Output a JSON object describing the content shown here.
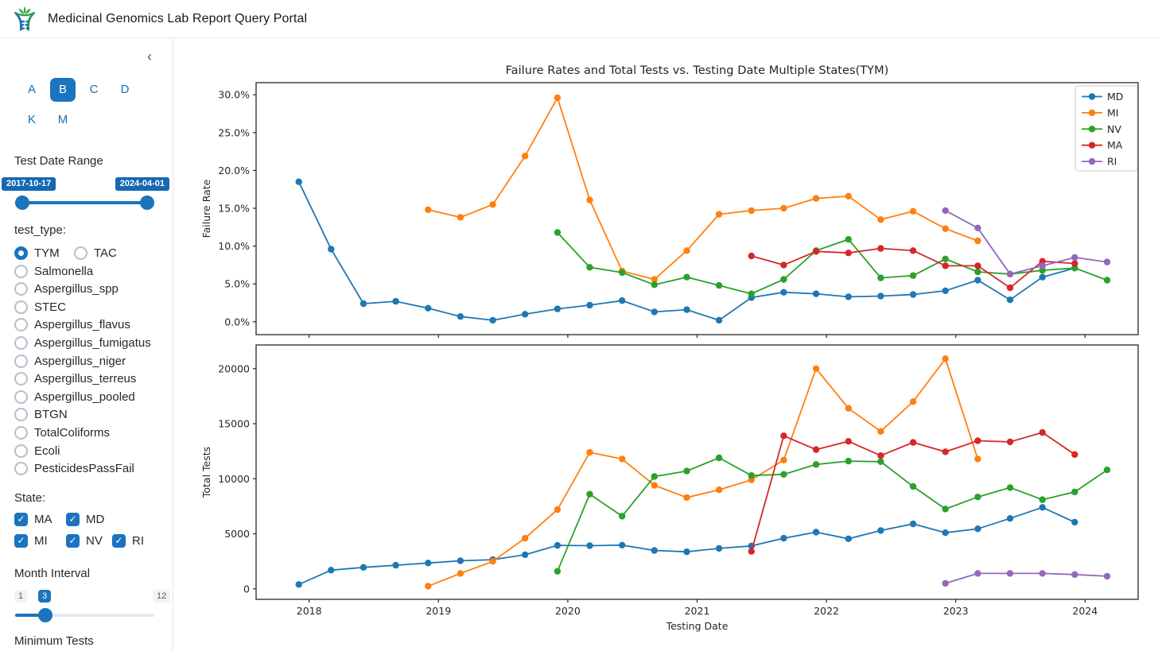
{
  "header": {
    "title": "Medicinal Genomics Lab Report Query Portal",
    "logo": "dna-plant-logo"
  },
  "sidebar": {
    "collapse_icon": "‹",
    "tabs": {
      "row1": [
        "A",
        "B",
        "C",
        "D"
      ],
      "row2": [
        "K",
        "M"
      ],
      "selected": "B"
    },
    "date_range": {
      "label": "Test Date Range",
      "start": "2017-10-17",
      "end": "2024-04-01"
    },
    "test_type": {
      "label": "test_type:",
      "selected": "TYM",
      "options": [
        "TYM",
        "TAC",
        "Salmonella",
        "Aspergillus_spp",
        "STEC",
        "Aspergillus_flavus",
        "Aspergillus_fumigatus",
        "Aspergillus_niger",
        "Aspergillus_terreus",
        "Aspergillus_pooled",
        "BTGN",
        "TotalColiforms",
        "Ecoli",
        "PesticidesPassFail"
      ]
    },
    "state": {
      "label": "State:",
      "options": [
        "MA",
        "MD",
        "MI",
        "NV",
        "RI"
      ],
      "checked": [
        "MA",
        "MD",
        "MI",
        "NV",
        "RI"
      ]
    },
    "month_interval": {
      "label": "Month Interval",
      "min": "1",
      "value": "3",
      "max": "12"
    },
    "minimum_tests": {
      "label": "Minimum Tests"
    }
  },
  "colors": {
    "accent": "#1b74bd",
    "MD": "#1f77b4",
    "MI": "#ff7f0e",
    "NV": "#2ca02c",
    "MA": "#d62728",
    "RI": "#9467bd"
  },
  "chart_data": [
    {
      "type": "line",
      "title": "Failure Rates and Total Tests vs. Testing Date Multiple States(TYM)",
      "ylabel": "Failure Rate",
      "xlabel": "",
      "y_ticks": [
        0,
        5,
        10,
        15,
        20,
        25,
        30
      ],
      "y_tick_labels": [
        "0.0%",
        "5.0%",
        "10.0%",
        "15.0%",
        "20.0%",
        "25.0%",
        "30.0%"
      ],
      "ylim": [
        -1.7,
        31.6
      ],
      "legend": [
        "MD",
        "MI",
        "NV",
        "MA",
        "RI"
      ],
      "legend_position": "upper right",
      "grid": false,
      "series": [
        {
          "name": "MD",
          "color": "#1f77b4",
          "points": [
            [
              2017.92,
              18.5
            ],
            [
              2018.17,
              9.6
            ],
            [
              2018.42,
              2.4
            ],
            [
              2018.67,
              2.7
            ],
            [
              2018.92,
              1.8
            ],
            [
              2019.17,
              0.7
            ],
            [
              2019.42,
              0.2
            ],
            [
              2019.67,
              1.0
            ],
            [
              2019.92,
              1.7
            ],
            [
              2020.17,
              2.2
            ],
            [
              2020.42,
              2.8
            ],
            [
              2020.67,
              1.3
            ],
            [
              2020.92,
              1.6
            ],
            [
              2021.17,
              0.2
            ],
            [
              2021.42,
              3.2
            ],
            [
              2021.67,
              3.9
            ],
            [
              2021.92,
              3.7
            ],
            [
              2022.17,
              3.3
            ],
            [
              2022.42,
              3.4
            ],
            [
              2022.67,
              3.6
            ],
            [
              2022.92,
              4.1
            ],
            [
              2023.17,
              5.5
            ],
            [
              2023.42,
              2.9
            ],
            [
              2023.67,
              5.9
            ],
            [
              2023.92,
              7.1
            ]
          ]
        },
        {
          "name": "MI",
          "color": "#ff7f0e",
          "points": [
            [
              2018.92,
              14.8
            ],
            [
              2019.17,
              13.8
            ],
            [
              2019.42,
              15.5
            ],
            [
              2019.67,
              21.9
            ],
            [
              2019.92,
              29.6
            ],
            [
              2020.17,
              16.1
            ],
            [
              2020.42,
              6.7
            ],
            [
              2020.67,
              5.6
            ],
            [
              2020.92,
              9.4
            ],
            [
              2021.17,
              14.2
            ],
            [
              2021.42,
              14.7
            ],
            [
              2021.67,
              15.0
            ],
            [
              2021.92,
              16.3
            ],
            [
              2022.17,
              16.6
            ],
            [
              2022.42,
              13.5
            ],
            [
              2022.67,
              14.6
            ],
            [
              2022.92,
              12.3
            ],
            [
              2023.17,
              10.7
            ]
          ]
        },
        {
          "name": "NV",
          "color": "#2ca02c",
          "points": [
            [
              2019.92,
              11.8
            ],
            [
              2020.17,
              7.2
            ],
            [
              2020.42,
              6.5
            ],
            [
              2020.67,
              4.9
            ],
            [
              2020.92,
              5.9
            ],
            [
              2021.17,
              4.8
            ],
            [
              2021.42,
              3.7
            ],
            [
              2021.67,
              5.6
            ],
            [
              2021.92,
              9.4
            ],
            [
              2022.17,
              10.9
            ],
            [
              2022.42,
              5.8
            ],
            [
              2022.67,
              6.1
            ],
            [
              2022.92,
              8.3
            ],
            [
              2023.17,
              6.6
            ],
            [
              2023.42,
              6.3
            ],
            [
              2023.67,
              6.8
            ],
            [
              2023.92,
              7.1
            ],
            [
              2024.17,
              5.5
            ]
          ]
        },
        {
          "name": "MA",
          "color": "#d62728",
          "points": [
            [
              2021.42,
              8.7
            ],
            [
              2021.67,
              7.5
            ],
            [
              2021.92,
              9.3
            ],
            [
              2022.17,
              9.1
            ],
            [
              2022.42,
              9.7
            ],
            [
              2022.67,
              9.4
            ],
            [
              2022.92,
              7.4
            ],
            [
              2023.17,
              7.4
            ],
            [
              2023.42,
              4.5
            ],
            [
              2023.67,
              8.0
            ],
            [
              2023.92,
              7.7
            ]
          ]
        },
        {
          "name": "RI",
          "color": "#9467bd",
          "points": [
            [
              2022.92,
              14.7
            ],
            [
              2023.17,
              12.4
            ],
            [
              2023.42,
              6.3
            ],
            [
              2023.67,
              7.4
            ],
            [
              2023.92,
              8.5
            ],
            [
              2024.17,
              7.9
            ]
          ]
        }
      ]
    },
    {
      "type": "line",
      "title": "",
      "ylabel": "Total Tests",
      "xlabel": "Testing Date",
      "y_ticks": [
        0,
        5000,
        10000,
        15000,
        20000
      ],
      "y_tick_labels": [
        "0",
        "5000",
        "10000",
        "15000",
        "20000"
      ],
      "ylim": [
        -950,
        22150
      ],
      "legend": null,
      "grid": false,
      "series": [
        {
          "name": "MD",
          "color": "#1f77b4",
          "points": [
            [
              2017.92,
              400
            ],
            [
              2018.17,
              1700
            ],
            [
              2018.42,
              1950
            ],
            [
              2018.67,
              2150
            ],
            [
              2018.92,
              2350
            ],
            [
              2019.17,
              2550
            ],
            [
              2019.42,
              2650
            ],
            [
              2019.67,
              3100
            ],
            [
              2019.92,
              3950
            ],
            [
              2020.17,
              3920
            ],
            [
              2020.42,
              3970
            ],
            [
              2020.67,
              3490
            ],
            [
              2020.92,
              3370
            ],
            [
              2021.17,
              3680
            ],
            [
              2021.42,
              3900
            ],
            [
              2021.67,
              4600
            ],
            [
              2021.92,
              5150
            ],
            [
              2022.17,
              4550
            ],
            [
              2022.42,
              5300
            ],
            [
              2022.67,
              5900
            ],
            [
              2022.92,
              5100
            ],
            [
              2023.17,
              5450
            ],
            [
              2023.42,
              6400
            ],
            [
              2023.67,
              7400
            ],
            [
              2023.92,
              6050
            ]
          ]
        },
        {
          "name": "MI",
          "color": "#ff7f0e",
          "points": [
            [
              2018.92,
              250
            ],
            [
              2019.17,
              1400
            ],
            [
              2019.42,
              2500
            ],
            [
              2019.67,
              4600
            ],
            [
              2019.92,
              7200
            ],
            [
              2020.17,
              12400
            ],
            [
              2020.42,
              11800
            ],
            [
              2020.67,
              9400
            ],
            [
              2020.92,
              8300
            ],
            [
              2021.17,
              9000
            ],
            [
              2021.42,
              9900
            ],
            [
              2021.67,
              11700
            ],
            [
              2021.92,
              20000
            ],
            [
              2022.17,
              16400
            ],
            [
              2022.42,
              14300
            ],
            [
              2022.67,
              17000
            ],
            [
              2022.92,
              20900
            ],
            [
              2023.17,
              11800
            ]
          ]
        },
        {
          "name": "NV",
          "color": "#2ca02c",
          "points": [
            [
              2019.92,
              1600
            ],
            [
              2020.17,
              8600
            ],
            [
              2020.42,
              6600
            ],
            [
              2020.67,
              10200
            ],
            [
              2020.92,
              10700
            ],
            [
              2021.17,
              11900
            ],
            [
              2021.42,
              10300
            ],
            [
              2021.67,
              10400
            ],
            [
              2021.92,
              11300
            ],
            [
              2022.17,
              11600
            ],
            [
              2022.42,
              11550
            ],
            [
              2022.67,
              9300
            ],
            [
              2022.92,
              7250
            ],
            [
              2023.17,
              8350
            ],
            [
              2023.42,
              9200
            ],
            [
              2023.67,
              8100
            ],
            [
              2023.92,
              8800
            ],
            [
              2024.17,
              10800
            ]
          ]
        },
        {
          "name": "MA",
          "color": "#d62728",
          "points": [
            [
              2021.42,
              3400
            ],
            [
              2021.67,
              13900
            ],
            [
              2021.92,
              12650
            ],
            [
              2022.17,
              13400
            ],
            [
              2022.42,
              12100
            ],
            [
              2022.67,
              13300
            ],
            [
              2022.92,
              12450
            ],
            [
              2023.17,
              13450
            ],
            [
              2023.42,
              13350
            ],
            [
              2023.67,
              14200
            ],
            [
              2023.92,
              12200
            ]
          ]
        },
        {
          "name": "RI",
          "color": "#9467bd",
          "points": [
            [
              2022.92,
              500
            ],
            [
              2023.17,
              1400
            ],
            [
              2023.42,
              1400
            ],
            [
              2023.67,
              1400
            ],
            [
              2023.92,
              1300
            ],
            [
              2024.17,
              1150
            ]
          ]
        }
      ]
    }
  ],
  "x_axis": {
    "ticks": [
      2018,
      2019,
      2020,
      2021,
      2022,
      2023,
      2024
    ],
    "labels": [
      "2018",
      "2019",
      "2020",
      "2021",
      "2022",
      "2023",
      "2024"
    ],
    "xlim": [
      2017.59,
      2024.41
    ]
  }
}
